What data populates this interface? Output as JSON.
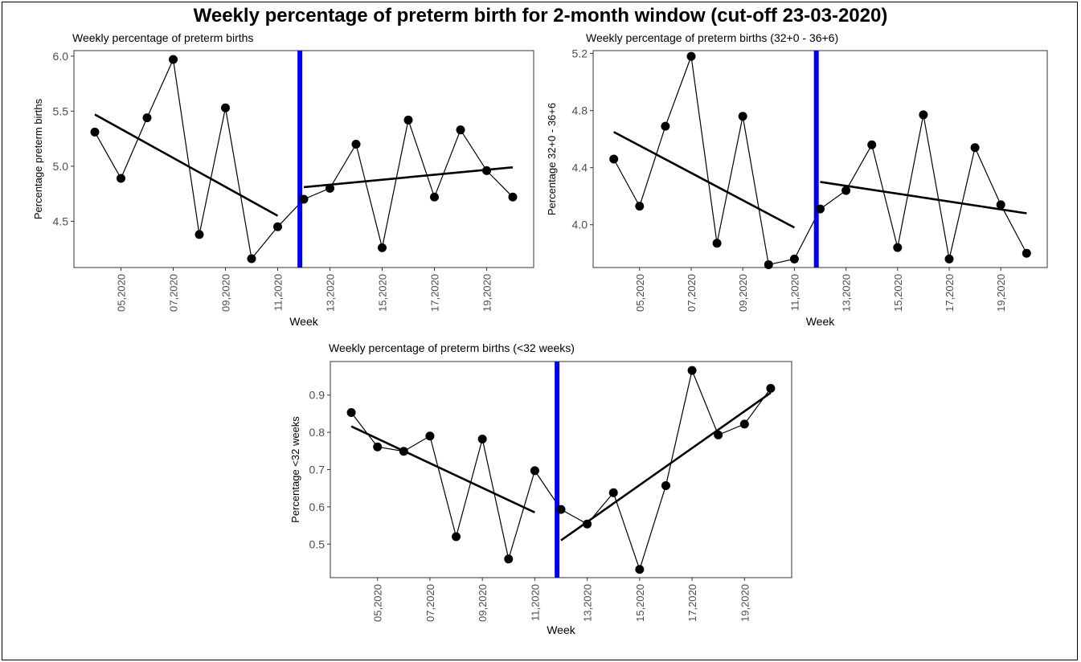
{
  "figure": {
    "title": "Weekly percentage of preterm birth for 2-month window (cut-off 23-03-2020)"
  },
  "colors": {
    "cutoff_line": "#0000ee",
    "points": "#000000",
    "panel_border": "#333333"
  },
  "chart_data": [
    {
      "type": "line",
      "title": "Weekly percentage of preterm births",
      "xlabel": "Week",
      "ylabel": "Percentage preterm births",
      "xlim": [
        3.2,
        20.8
      ],
      "ylim": [
        4.08,
        6.05
      ],
      "x_ticks": [
        5,
        7,
        9,
        11,
        13,
        15,
        17,
        19
      ],
      "x_tick_labels": [
        "05,2020",
        "07,2020",
        "09,2020",
        "11,2020",
        "13,2020",
        "15,2020",
        "17,2020",
        "19,2020"
      ],
      "y_ticks": [
        4.5,
        5.0,
        5.5,
        6.0
      ],
      "y_tick_labels": [
        "4.5",
        "5.0",
        "5.5",
        "6.0"
      ],
      "cutoff_x": 11.85,
      "points": {
        "x": [
          4,
          5,
          6,
          7,
          8,
          9,
          10,
          11,
          12,
          13,
          14,
          15,
          16,
          17,
          18,
          19,
          20
        ],
        "y": [
          5.31,
          4.89,
          5.44,
          5.97,
          4.38,
          5.53,
          4.16,
          4.45,
          4.7,
          4.8,
          5.2,
          4.26,
          5.42,
          4.72,
          5.33,
          4.96,
          4.72
        ]
      },
      "trend_pre": {
        "x": [
          4,
          11
        ],
        "y": [
          5.47,
          4.55
        ]
      },
      "trend_post": {
        "x": [
          12,
          20
        ],
        "y": [
          4.81,
          4.99
        ]
      }
    },
    {
      "type": "line",
      "title": "Weekly percentage of preterm births (32+0 - 36+6)",
      "xlabel": "Week",
      "ylabel": "Percentage 32+0 - 36+6",
      "xlim": [
        3.2,
        20.8
      ],
      "ylim": [
        3.7,
        5.22
      ],
      "x_ticks": [
        5,
        7,
        9,
        11,
        13,
        15,
        17,
        19
      ],
      "x_tick_labels": [
        "05,2020",
        "07,2020",
        "09,2020",
        "11,2020",
        "13,2020",
        "15,2020",
        "17,2020",
        "19,2020"
      ],
      "y_ticks": [
        4.0,
        4.4,
        4.8,
        5.2
      ],
      "y_tick_labels": [
        "4.0",
        "4.4",
        "4.8",
        "5.2"
      ],
      "cutoff_x": 11.85,
      "points": {
        "x": [
          4,
          5,
          6,
          7,
          8,
          9,
          10,
          11,
          12,
          13,
          14,
          15,
          16,
          17,
          18,
          19,
          20
        ],
        "y": [
          4.46,
          4.13,
          4.69,
          5.18,
          3.87,
          4.76,
          3.72,
          3.76,
          4.11,
          4.24,
          4.56,
          3.84,
          4.77,
          3.76,
          4.54,
          4.14,
          3.8
        ]
      },
      "trend_pre": {
        "x": [
          4,
          11
        ],
        "y": [
          4.65,
          3.98
        ]
      },
      "trend_post": {
        "x": [
          12,
          20
        ],
        "y": [
          4.3,
          4.08
        ]
      }
    },
    {
      "type": "line",
      "title": "Weekly percentage of preterm births (<32 weeks)",
      "xlabel": "Week",
      "ylabel": "Percentage <32 weeks",
      "xlim": [
        3.2,
        20.8
      ],
      "ylim": [
        0.41,
        0.99
      ],
      "x_ticks": [
        5,
        7,
        9,
        11,
        13,
        15,
        17,
        19
      ],
      "x_tick_labels": [
        "05,2020",
        "07,2020",
        "09,2020",
        "11,2020",
        "13,2020",
        "15,2020",
        "17,2020",
        "19,2020"
      ],
      "y_ticks": [
        0.5,
        0.6,
        0.7,
        0.8,
        0.9
      ],
      "y_tick_labels": [
        "0.5",
        "0.6",
        "0.7",
        "0.8",
        "0.9"
      ],
      "cutoff_x": 11.85,
      "points": {
        "x": [
          4,
          5,
          6,
          7,
          8,
          9,
          10,
          11,
          12,
          13,
          14,
          15,
          16,
          17,
          18,
          19,
          20
        ],
        "y": [
          0.853,
          0.761,
          0.749,
          0.79,
          0.52,
          0.782,
          0.46,
          0.697,
          0.593,
          0.554,
          0.638,
          0.432,
          0.657,
          0.966,
          0.793,
          0.822,
          0.918
        ]
      },
      "trend_pre": {
        "x": [
          4,
          11
        ],
        "y": [
          0.816,
          0.585
        ]
      },
      "trend_post": {
        "x": [
          12,
          20
        ],
        "y": [
          0.51,
          0.906
        ]
      }
    }
  ]
}
